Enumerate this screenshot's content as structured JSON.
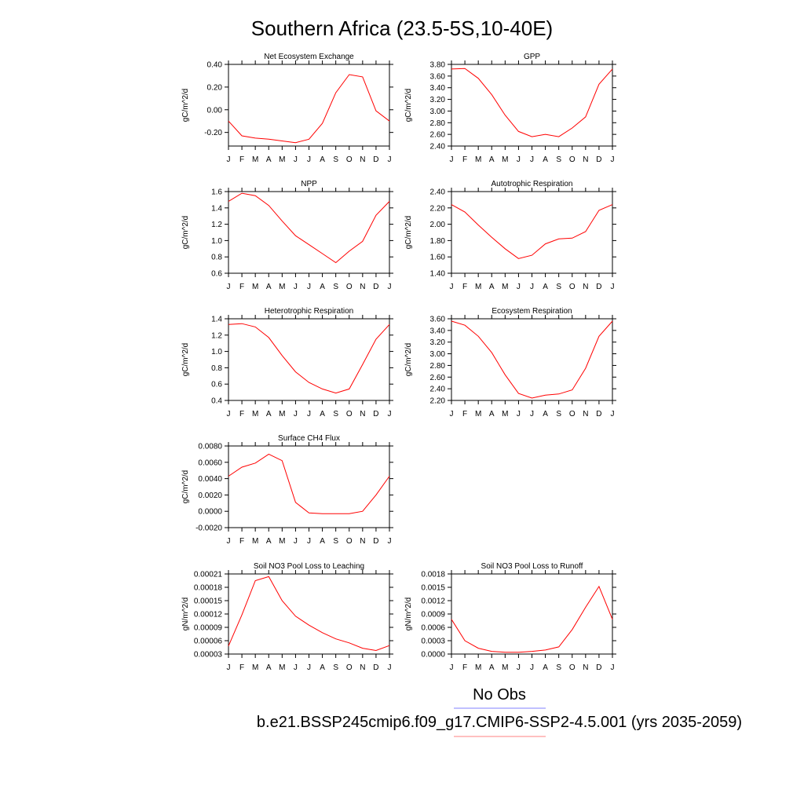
{
  "figure": {
    "title": "Southern Africa (23.5-5S,10-40E)",
    "legend": [
      {
        "label": "No Obs",
        "color": "#8080ff"
      },
      {
        "label": "b.e21.BSSP245cmip6.f09_g17.CMIP6-SSP2-4.5.001 (yrs 2035-2059)",
        "color": "#ff8080"
      }
    ]
  },
  "chart_data": [
    {
      "type": "line",
      "title": "Net Ecosystem Exchange",
      "ylabel": "gC/m^2/d",
      "categories": [
        "J",
        "F",
        "M",
        "A",
        "M",
        "J",
        "J",
        "A",
        "S",
        "O",
        "N",
        "D",
        "J"
      ],
      "ylim": [
        -0.32,
        0.4
      ],
      "yticks": [
        -0.2,
        0.0,
        0.2,
        0.4
      ],
      "ytick_labels": [
        "-0.20",
        "0.00",
        "0.20",
        "0.40"
      ],
      "series": [
        {
          "color": "#ff0000",
          "values": [
            -0.1,
            -0.23,
            -0.25,
            -0.26,
            -0.275,
            -0.29,
            -0.26,
            -0.12,
            0.15,
            0.31,
            0.29,
            -0.01,
            -0.1
          ]
        }
      ]
    },
    {
      "type": "line",
      "title": "GPP",
      "ylabel": "gC/m^2/d",
      "categories": [
        "J",
        "F",
        "M",
        "A",
        "M",
        "J",
        "J",
        "A",
        "S",
        "O",
        "N",
        "D",
        "J"
      ],
      "ylim": [
        2.4,
        3.8
      ],
      "yticks": [
        2.4,
        2.6,
        2.8,
        3.0,
        3.2,
        3.4,
        3.6,
        3.8
      ],
      "ytick_labels": [
        "2.40",
        "2.60",
        "2.80",
        "3.00",
        "3.20",
        "3.40",
        "3.60",
        "3.80"
      ],
      "series": [
        {
          "color": "#ff0000",
          "values": [
            3.72,
            3.73,
            3.56,
            3.28,
            2.93,
            2.65,
            2.56,
            2.6,
            2.56,
            2.71,
            2.9,
            3.46,
            3.72
          ]
        }
      ]
    },
    {
      "type": "line",
      "title": "NPP",
      "ylabel": "gC/m^2/d",
      "categories": [
        "J",
        "F",
        "M",
        "A",
        "M",
        "J",
        "J",
        "A",
        "S",
        "O",
        "N",
        "D",
        "J"
      ],
      "ylim": [
        0.6,
        1.6
      ],
      "yticks": [
        0.6,
        0.8,
        1.0,
        1.2,
        1.4,
        1.6
      ],
      "ytick_labels": [
        "0.6",
        "0.8",
        "1.0",
        "1.2",
        "1.4",
        "1.6"
      ],
      "series": [
        {
          "color": "#ff0000",
          "values": [
            1.48,
            1.58,
            1.55,
            1.43,
            1.24,
            1.06,
            0.95,
            0.84,
            0.73,
            0.87,
            0.99,
            1.31,
            1.48
          ]
        }
      ]
    },
    {
      "type": "line",
      "title": "Autotrophic Respiration",
      "ylabel": "gC/m^2/d",
      "categories": [
        "J",
        "F",
        "M",
        "A",
        "M",
        "J",
        "J",
        "A",
        "S",
        "O",
        "N",
        "D",
        "J"
      ],
      "ylim": [
        1.4,
        2.4
      ],
      "yticks": [
        1.4,
        1.6,
        1.8,
        2.0,
        2.2,
        2.4
      ],
      "ytick_labels": [
        "1.40",
        "1.60",
        "1.80",
        "2.00",
        "2.20",
        "2.40"
      ],
      "series": [
        {
          "color": "#ff0000",
          "values": [
            2.24,
            2.15,
            1.99,
            1.84,
            1.7,
            1.58,
            1.62,
            1.76,
            1.82,
            1.83,
            1.91,
            2.17,
            2.24
          ]
        }
      ]
    },
    {
      "type": "line",
      "title": "Heterotrophic Respiration",
      "ylabel": "gC/m^2/d",
      "categories": [
        "J",
        "F",
        "M",
        "A",
        "M",
        "J",
        "J",
        "A",
        "S",
        "O",
        "N",
        "D",
        "J"
      ],
      "ylim": [
        0.4,
        1.4
      ],
      "yticks": [
        0.4,
        0.6,
        0.8,
        1.0,
        1.2,
        1.4
      ],
      "ytick_labels": [
        "0.4",
        "0.6",
        "0.8",
        "1.0",
        "1.2",
        "1.4"
      ],
      "series": [
        {
          "color": "#ff0000",
          "values": [
            1.33,
            1.34,
            1.3,
            1.17,
            0.95,
            0.75,
            0.62,
            0.54,
            0.49,
            0.54,
            0.84,
            1.15,
            1.33
          ]
        }
      ]
    },
    {
      "type": "line",
      "title": "Ecosystem Respiration",
      "ylabel": "gC/m^2/d",
      "categories": [
        "J",
        "F",
        "M",
        "A",
        "M",
        "J",
        "J",
        "A",
        "S",
        "O",
        "N",
        "D",
        "J"
      ],
      "ylim": [
        2.2,
        3.6
      ],
      "yticks": [
        2.2,
        2.4,
        2.6,
        2.8,
        3.0,
        3.2,
        3.4,
        3.6
      ],
      "ytick_labels": [
        "2.20",
        "2.40",
        "2.60",
        "2.80",
        "3.00",
        "3.20",
        "3.40",
        "3.60"
      ],
      "series": [
        {
          "color": "#ff0000",
          "values": [
            3.56,
            3.49,
            3.3,
            3.02,
            2.64,
            2.32,
            2.24,
            2.29,
            2.31,
            2.38,
            2.75,
            3.3,
            3.56
          ]
        }
      ]
    },
    {
      "type": "line",
      "title": "Surface CH4 Flux",
      "ylabel": "gC/m^2/d",
      "categories": [
        "J",
        "F",
        "M",
        "A",
        "M",
        "J",
        "J",
        "A",
        "S",
        "O",
        "N",
        "D",
        "J"
      ],
      "ylim": [
        -0.002,
        0.008
      ],
      "yticks": [
        -0.002,
        0.0,
        0.002,
        0.004,
        0.006,
        0.008
      ],
      "ytick_labels": [
        "-0.0020",
        "0.0000",
        "0.0020",
        "0.0040",
        "0.0060",
        "0.0080"
      ],
      "series": [
        {
          "color": "#ff0000",
          "values": [
            0.0043,
            0.0054,
            0.0059,
            0.007,
            0.0062,
            0.0011,
            -0.0002,
            -0.0003,
            -0.0003,
            -0.0003,
            0.0,
            0.002,
            0.0043
          ]
        }
      ]
    },
    {
      "type": "line",
      "title": "Soil NO3 Pool Loss to Leaching",
      "ylabel": "gN/m^2/d",
      "categories": [
        "J",
        "F",
        "M",
        "A",
        "M",
        "J",
        "J",
        "A",
        "S",
        "O",
        "N",
        "D",
        "J"
      ],
      "ylim": [
        3e-05,
        0.00021
      ],
      "yticks": [
        3e-05,
        6e-05,
        9e-05,
        0.00012,
        0.00015,
        0.00018,
        0.00021
      ],
      "ytick_labels": [
        "0.00003",
        "0.00006",
        "0.00009",
        "0.00012",
        "0.00015",
        "0.00018",
        "0.00021"
      ],
      "series": [
        {
          "color": "#ff0000",
          "values": [
            4.8e-05,
            0.000118,
            0.000195,
            0.000204,
            0.00015,
            0.000115,
            9.5e-05,
            7.8e-05,
            6.4e-05,
            5.5e-05,
            4.3e-05,
            3.8e-05,
            4.9e-05
          ]
        }
      ]
    },
    {
      "type": "line",
      "title": "Soil NO3 Pool Loss to Runoff",
      "ylabel": "gN/m^2/d",
      "categories": [
        "J",
        "F",
        "M",
        "A",
        "M",
        "J",
        "J",
        "A",
        "S",
        "O",
        "N",
        "D",
        "J"
      ],
      "ylim": [
        0.0,
        0.0018
      ],
      "yticks": [
        0.0,
        0.0003,
        0.0006,
        0.0009,
        0.0012,
        0.0015,
        0.0018
      ],
      "ytick_labels": [
        "0.0000",
        "0.0003",
        "0.0006",
        "0.0009",
        "0.0012",
        "0.0015",
        "0.0018"
      ],
      "series": [
        {
          "color": "#ff0000",
          "values": [
            0.00078,
            0.0003,
            0.00013,
            6e-05,
            4e-05,
            4e-05,
            6e-05,
            9e-05,
            0.00016,
            0.00055,
            0.00105,
            0.00152,
            0.00078
          ]
        }
      ]
    }
  ]
}
